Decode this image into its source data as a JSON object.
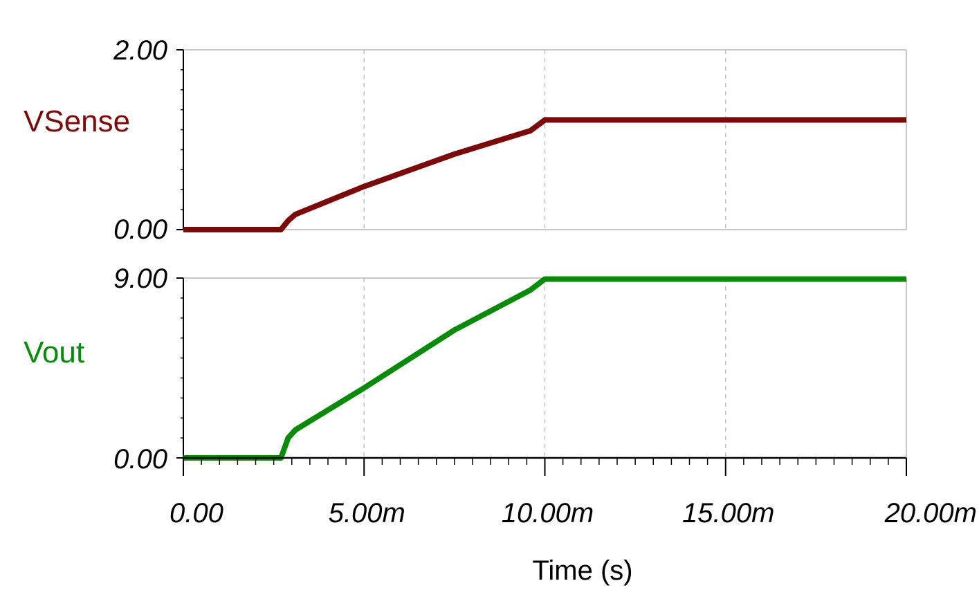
{
  "chart_data": [
    {
      "type": "line",
      "ylabel": "VSense",
      "ylim": [
        0,
        2
      ],
      "xlim": [
        0,
        0.02
      ],
      "y_tick_labels": [
        "0.00",
        "2.00"
      ],
      "grid": "vertical dashed + top border",
      "series": [
        {
          "name": "VSense",
          "color": "#7a0a0a",
          "x": [
            0,
            0.0027,
            0.0029,
            0.0031,
            0.005,
            0.0075,
            0.0096,
            0.01,
            0.02
          ],
          "y": [
            0,
            0,
            0.1,
            0.17,
            0.48,
            0.84,
            1.1,
            1.22,
            1.22
          ]
        }
      ]
    },
    {
      "type": "line",
      "ylabel": "Vout",
      "ylim": [
        0,
        9
      ],
      "xlim": [
        0,
        0.02
      ],
      "y_tick_labels": [
        "0.00",
        "9.00"
      ],
      "grid": "vertical dashed + top border",
      "series": [
        {
          "name": "Vout",
          "color": "#078a07",
          "x": [
            0,
            0.0027,
            0.0029,
            0.0031,
            0.005,
            0.0075,
            0.0096,
            0.01,
            0.02
          ],
          "y": [
            0,
            0,
            1.0,
            1.4,
            3.5,
            6.4,
            8.4,
            8.95,
            8.95
          ]
        }
      ]
    }
  ],
  "x_axis": {
    "label": "Time (s)",
    "tick_labels": [
      "0.00",
      "5.00m",
      "10.00m",
      "15.00m",
      "20.00m"
    ],
    "tick_values": [
      0,
      0.005,
      0.01,
      0.015,
      0.02
    ]
  }
}
